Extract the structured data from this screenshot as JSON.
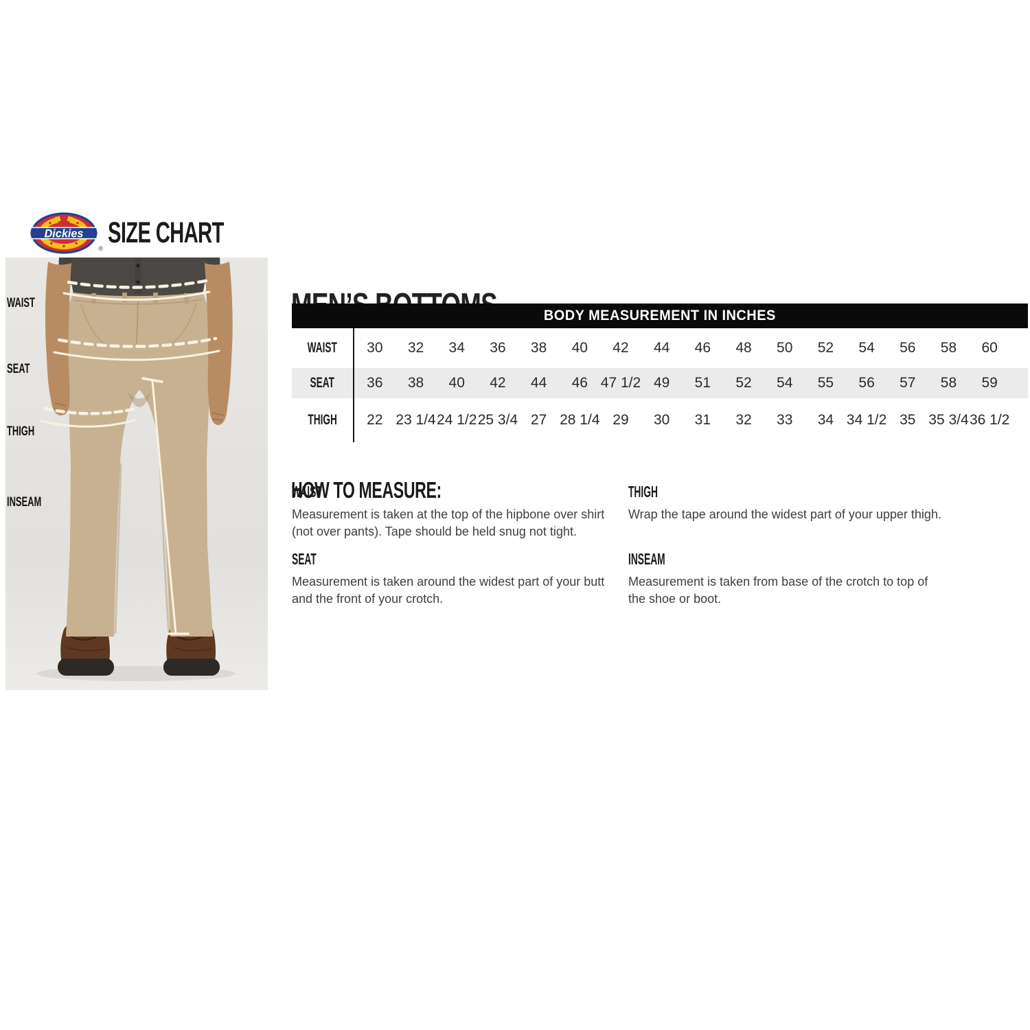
{
  "header": {
    "logo_text": "Dickies",
    "registered_mark": "®",
    "title": "SIZE CHART"
  },
  "figure": {
    "labels": [
      "WAIST",
      "SEAT",
      "THIGH",
      "INSEAM"
    ]
  },
  "main": {
    "title": "MEN’S BOTTOMS",
    "table": {
      "header": "BODY MEASUREMENT IN INCHES",
      "rows": [
        {
          "label": "WAIST",
          "values": [
            "30",
            "32",
            "34",
            "36",
            "38",
            "40",
            "42",
            "44",
            "46",
            "48",
            "50",
            "52",
            "54",
            "56",
            "58",
            "60"
          ]
        },
        {
          "label": "SEAT",
          "values": [
            "36",
            "38",
            "40",
            "42",
            "44",
            "46",
            "47 1/2",
            "49",
            "51",
            "52",
            "54",
            "55",
            "56",
            "57",
            "58",
            "59"
          ]
        },
        {
          "label": "THIGH",
          "values": [
            "22",
            "23 1/4",
            "24 1/2",
            "25 3/4",
            "27",
            "28 1/4",
            "29",
            "30",
            "31",
            "32",
            "33",
            "34",
            "34 1/2",
            "35",
            "35 3/4",
            "36 1/2"
          ]
        }
      ]
    },
    "how_to_measure": {
      "title": "HOW TO MEASURE:",
      "items": [
        {
          "label": "WAIST",
          "text": "Measurement is taken at the top of the hipbone over shirt\n(not over pants). Tape should be held snug not tight."
        },
        {
          "label": "SEAT",
          "text": "Measurement is taken around the widest part of your butt\nand the front of your crotch."
        },
        {
          "label": "THIGH",
          "text": "Wrap the tape around the widest part of your upper thigh."
        },
        {
          "label": "INSEAM",
          "text": "Measurement is taken from base of the crotch to top of\nthe shoe or boot."
        }
      ]
    }
  },
  "colors": {
    "brand_red": "#d02c33",
    "brand_blue": "#23418f",
    "brand_yellow": "#f2bf1b",
    "table_header_bg": "#0a0a0a",
    "table_header_text": "#ffffff",
    "row_alt_bg": "#ebebeb",
    "photo_bg": "#e5e3e0",
    "pants_khaki": "#c7b190",
    "shirt_gray": "#4b4845",
    "boot_brown": "#5e3820",
    "skin": "#b78c62",
    "measure_line": "#f8f2e3",
    "text_dark": "#1b1b1b",
    "body_text": "#3e3e3e"
  }
}
